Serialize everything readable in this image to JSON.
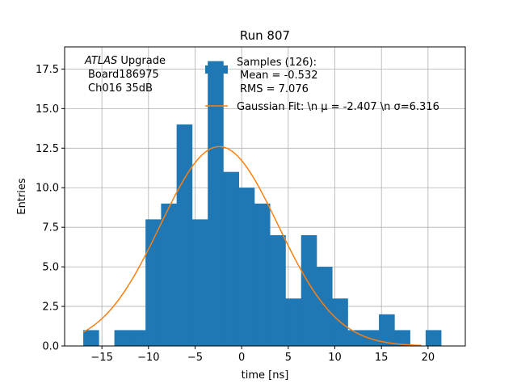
{
  "chart_data": {
    "type": "bar",
    "title": "Run 807",
    "xlabel": "time [ns]",
    "ylabel": "Entries",
    "xlim": [
      -19,
      24
    ],
    "ylim": [
      0,
      18.9
    ],
    "grid": true,
    "xticks": [
      -15,
      -10,
      -5,
      0,
      5,
      10,
      15,
      20
    ],
    "xtick_labels": [
      "−15",
      "−10",
      "−5",
      "0",
      "5",
      "10",
      "15",
      "20"
    ],
    "yticks": [
      0,
      2.5,
      5,
      7.5,
      10,
      12.5,
      15,
      17.5
    ],
    "ytick_labels": [
      "0.0",
      "2.5",
      "5.0",
      "7.5",
      "10.0",
      "12.5",
      "15.0",
      "17.5"
    ],
    "bin_start": -17,
    "bin_width": 1.67,
    "values": [
      1,
      0,
      1,
      1,
      8,
      9,
      14,
      8,
      18,
      11,
      10,
      9,
      7,
      3,
      7,
      5,
      3,
      1,
      1,
      2,
      1,
      0,
      1
    ],
    "fit": {
      "type": "gaussian",
      "mu": -2.407,
      "sigma": 6.316,
      "amplitude": 12.6,
      "x_range": [
        -17,
        19.3
      ]
    },
    "annotation": {
      "italic": "ATLAS",
      "word": " Upgrade",
      "lines": [
        "Board186975",
        "Ch016 35dB"
      ]
    },
    "legend": {
      "position": "top-right",
      "samples_lines": [
        "Samples (126):",
        "Mean = -0.532",
        "RMS = 7.076"
      ],
      "fit_label": "Gaussian Fit: \\n μ = -2.407 \\n σ=6.316"
    },
    "colors": {
      "bars": "#1f77b4",
      "fit": "#ff7f0e",
      "grid": "#b0b0b0"
    }
  }
}
